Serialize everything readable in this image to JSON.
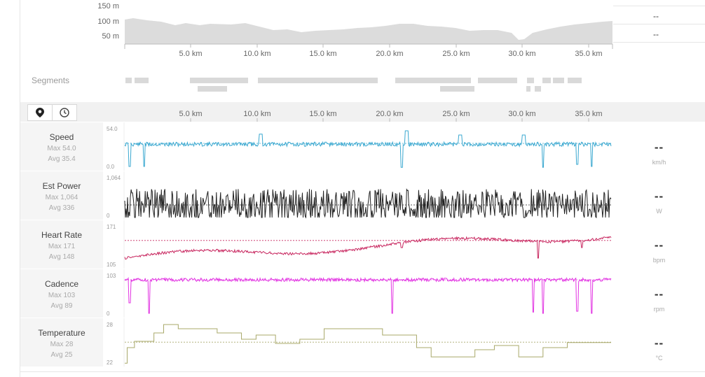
{
  "elevation": {
    "y_ticks": [
      "150 m",
      "100 m",
      "50 m"
    ],
    "x_ticks": [
      "5.0 km",
      "10.0 km",
      "15.0 km",
      "20.0 km",
      "25.0 km",
      "30.0 km",
      "35.0 km"
    ],
    "fill_color": "#dcdcdc"
  },
  "side_stats": [
    "--",
    "--",
    "--"
  ],
  "segments": {
    "label": "Segments"
  },
  "toolbar": {
    "map_icon": "map-pin-icon",
    "time_icon": "clock-icon",
    "x_ticks": [
      "5.0 km",
      "10.0 km",
      "15.0 km",
      "20.0 km",
      "25.0 km",
      "30.0 km",
      "35.0 km"
    ]
  },
  "streams": [
    {
      "title": "Speed",
      "max": "Max 54.0",
      "avg": "Avg 35.4",
      "top": "54.0",
      "bottom": "0.0",
      "value": "--",
      "unit": "km/h",
      "color": "#3aa8d0"
    },
    {
      "title": "Est Power",
      "max": "Max 1,064",
      "avg": "Avg 336",
      "top": "1,064",
      "bottom": "0",
      "value": "--",
      "unit": "W",
      "color": "#222222"
    },
    {
      "title": "Heart Rate",
      "max": "Max 171",
      "avg": "Avg 148",
      "top": "171",
      "bottom": "105",
      "value": "--",
      "unit": "bpm",
      "color": "#c8265f"
    },
    {
      "title": "Cadence",
      "max": "Max 103",
      "avg": "Avg 89",
      "top": "103",
      "bottom": "0",
      "value": "--",
      "unit": "rpm",
      "color": "#e234e2"
    },
    {
      "title": "Temperature",
      "max": "Max 28",
      "avg": "Avg 25",
      "top": "28",
      "bottom": "22",
      "value": "--",
      "unit": "°C",
      "color": "#a8a86a"
    }
  ]
}
